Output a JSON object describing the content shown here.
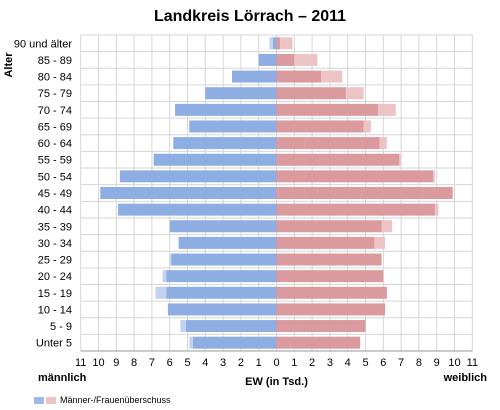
{
  "chart_data": {
    "type": "bar",
    "title": "Landkreis Lörrach – 2011",
    "ylabel": "Alter",
    "xlabel": "EW (in Tsd.)",
    "left_label": "männlich",
    "right_label": "weiblich",
    "xlim": [
      -11,
      11
    ],
    "x_ticks": [
      "11",
      "10",
      "9",
      "8",
      "7",
      "6",
      "5",
      "4",
      "3",
      "2",
      "1",
      "0",
      "1",
      "2",
      "3",
      "4",
      "5",
      "6",
      "7",
      "8",
      "9",
      "10",
      "11"
    ],
    "grid": true,
    "categories": [
      "Unter 5",
      "5 - 9",
      "10 - 14",
      "15 - 19",
      "20 - 24",
      "25 - 29",
      "30 - 34",
      "35 - 39",
      "40 - 44",
      "45 - 49",
      "50 - 54",
      "55 - 59",
      "60 - 64",
      "65 - 69",
      "70 - 74",
      "75 - 79",
      "80 - 84",
      "85 - 89",
      "90 und älter"
    ],
    "series": [
      {
        "side": "left",
        "values": [
          4.7,
          5.1,
          6.1,
          6.2,
          6.2,
          5.9,
          5.5,
          6.0,
          8.9,
          9.9,
          8.8,
          6.9,
          5.8,
          4.9,
          5.7,
          4.0,
          2.5,
          1.0,
          0.2
        ]
      },
      {
        "side": "right",
        "values": [
          4.7,
          5.0,
          6.1,
          6.2,
          6.0,
          5.9,
          5.5,
          5.9,
          8.9,
          9.9,
          8.8,
          6.9,
          5.8,
          4.9,
          5.7,
          3.9,
          2.5,
          1.0,
          0.2
        ]
      },
      {
        "side": "right",
        "name": "Männer-/Frauenüberschuss",
        "values": [
          0,
          0,
          0,
          0,
          0,
          0,
          0.6,
          0.6,
          0.2,
          0,
          0.1,
          0.1,
          0.4,
          0.4,
          1.0,
          1.0,
          1.2,
          1.3,
          0.7
        ]
      },
      {
        "side": "left",
        "name": "Männer-/Frauenüberschuss",
        "values": [
          0.2,
          0.3,
          0,
          0.6,
          0.2,
          0.1,
          0,
          0,
          0,
          0,
          0,
          0,
          0,
          0,
          0,
          0,
          0,
          0,
          0.2
        ]
      }
    ],
    "colors": {
      "male": "#8eaee3",
      "male_surplus": "#c2d3ef",
      "female": "#db9a9e",
      "female_surplus": "#ecc4c6",
      "grid": "#d6d6d6"
    },
    "legend": {
      "label": "Männer-/Frauenüberschuss",
      "position": "bottom-left"
    }
  }
}
